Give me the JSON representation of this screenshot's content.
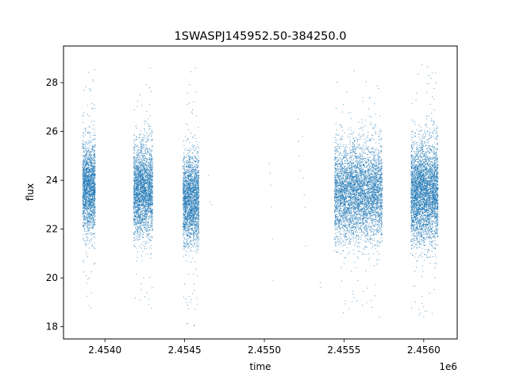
{
  "chart_data": {
    "type": "scatter",
    "title": "1SWASPJ145952.50-384250.0",
    "xlabel": "time",
    "ylabel": "flux",
    "x_offset_label": "1e6",
    "xlim": [
      2453740,
      2456210
    ],
    "ylim": [
      17.5,
      29.5
    ],
    "x_ticks": [
      2454000,
      2454500,
      2455000,
      2455500,
      2456000
    ],
    "x_tick_labels": [
      "2.4540",
      "2.4545",
      "2.4550",
      "2.4555",
      "2.4560"
    ],
    "y_ticks": [
      18,
      20,
      22,
      24,
      26,
      28
    ],
    "y_tick_labels": [
      "18",
      "20",
      "22",
      "24",
      "26",
      "28"
    ],
    "grid": false,
    "marker_color": "#1f77b4",
    "clusters": [
      {
        "x_start": 2453860,
        "x_end": 2453940,
        "y_center": 23.7,
        "y_spread": 0.9,
        "n": 2000,
        "y_min": 18.1,
        "y_max": 28.8
      },
      {
        "x_start": 2454180,
        "x_end": 2454300,
        "y_center": 23.6,
        "y_spread": 0.9,
        "n": 2600,
        "y_min": 18.1,
        "y_max": 28.7
      },
      {
        "x_start": 2454490,
        "x_end": 2454590,
        "y_center": 23.2,
        "y_spread": 0.9,
        "n": 2300,
        "y_min": 18.0,
        "y_max": 28.6
      },
      {
        "x_start": 2455440,
        "x_end": 2455740,
        "y_center": 23.5,
        "y_spread": 0.95,
        "n": 4600,
        "y_min": 18.1,
        "y_max": 28.5
      },
      {
        "x_start": 2455920,
        "x_end": 2456090,
        "y_center": 23.5,
        "y_spread": 1.0,
        "n": 3800,
        "y_min": 18.3,
        "y_max": 28.9
      }
    ],
    "sparse_points": [
      [
        2454650,
        24.2
      ],
      [
        2454660,
        23.1
      ],
      [
        2454670,
        23.0
      ],
      [
        2455030,
        24.7
      ],
      [
        2455035,
        24.3
      ],
      [
        2455040,
        23.8
      ],
      [
        2455045,
        22.9
      ],
      [
        2455050,
        21.6
      ],
      [
        2455055,
        19.9
      ],
      [
        2455210,
        26.5
      ],
      [
        2455215,
        25.6
      ],
      [
        2455220,
        25.0
      ],
      [
        2455225,
        24.4
      ],
      [
        2455240,
        25.8
      ],
      [
        2455245,
        24.1
      ],
      [
        2455250,
        23.4
      ],
      [
        2455255,
        22.9
      ],
      [
        2455260,
        21.3
      ],
      [
        2455350,
        19.8
      ],
      [
        2455355,
        19.6
      ]
    ]
  }
}
